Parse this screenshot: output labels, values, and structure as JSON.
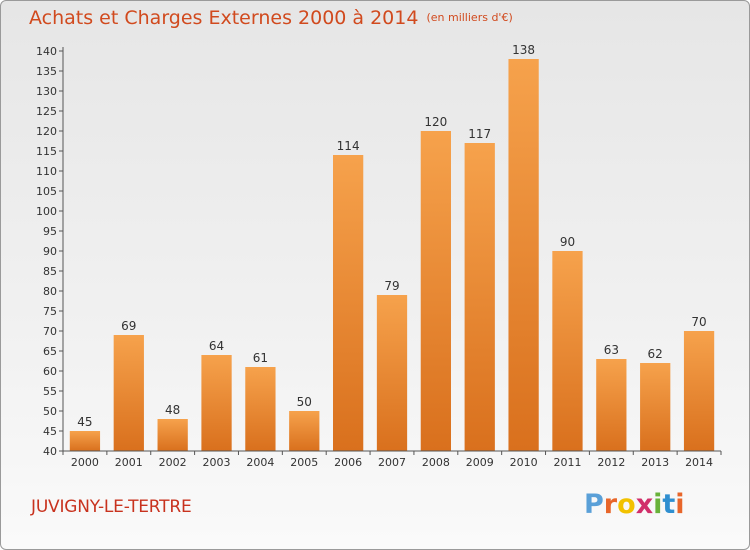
{
  "header": {
    "title": "Achats et Charges Externes 2000 à 2014",
    "subtitle": "(en milliers d'€)"
  },
  "footer": {
    "commune": "JUVIGNY-LE-TERTRE",
    "logo_text": "Proxiti",
    "logo_colors": [
      "#5aa0d8",
      "#e8662a",
      "#f2c200",
      "#d12f6a",
      "#69b23a",
      "#2f8fd0",
      "#e8662a"
    ]
  },
  "chart_data": {
    "type": "bar",
    "title": "Achats et Charges Externes 2000 à 2014",
    "subtitle": "(en milliers d'€)",
    "xlabel": "",
    "ylabel": "",
    "categories": [
      "2000",
      "2001",
      "2002",
      "2003",
      "2004",
      "2005",
      "2006",
      "2007",
      "2008",
      "2009",
      "2010",
      "2011",
      "2012",
      "2013",
      "2014"
    ],
    "values": [
      45,
      69,
      48,
      64,
      61,
      50,
      114,
      79,
      120,
      117,
      138,
      90,
      63,
      62,
      70
    ],
    "ylim": [
      40,
      140
    ],
    "ytick_step": 5,
    "grid": false,
    "bar_color_top": "#f6a24c",
    "bar_color_bottom": "#d9701d",
    "data_labels": true
  }
}
